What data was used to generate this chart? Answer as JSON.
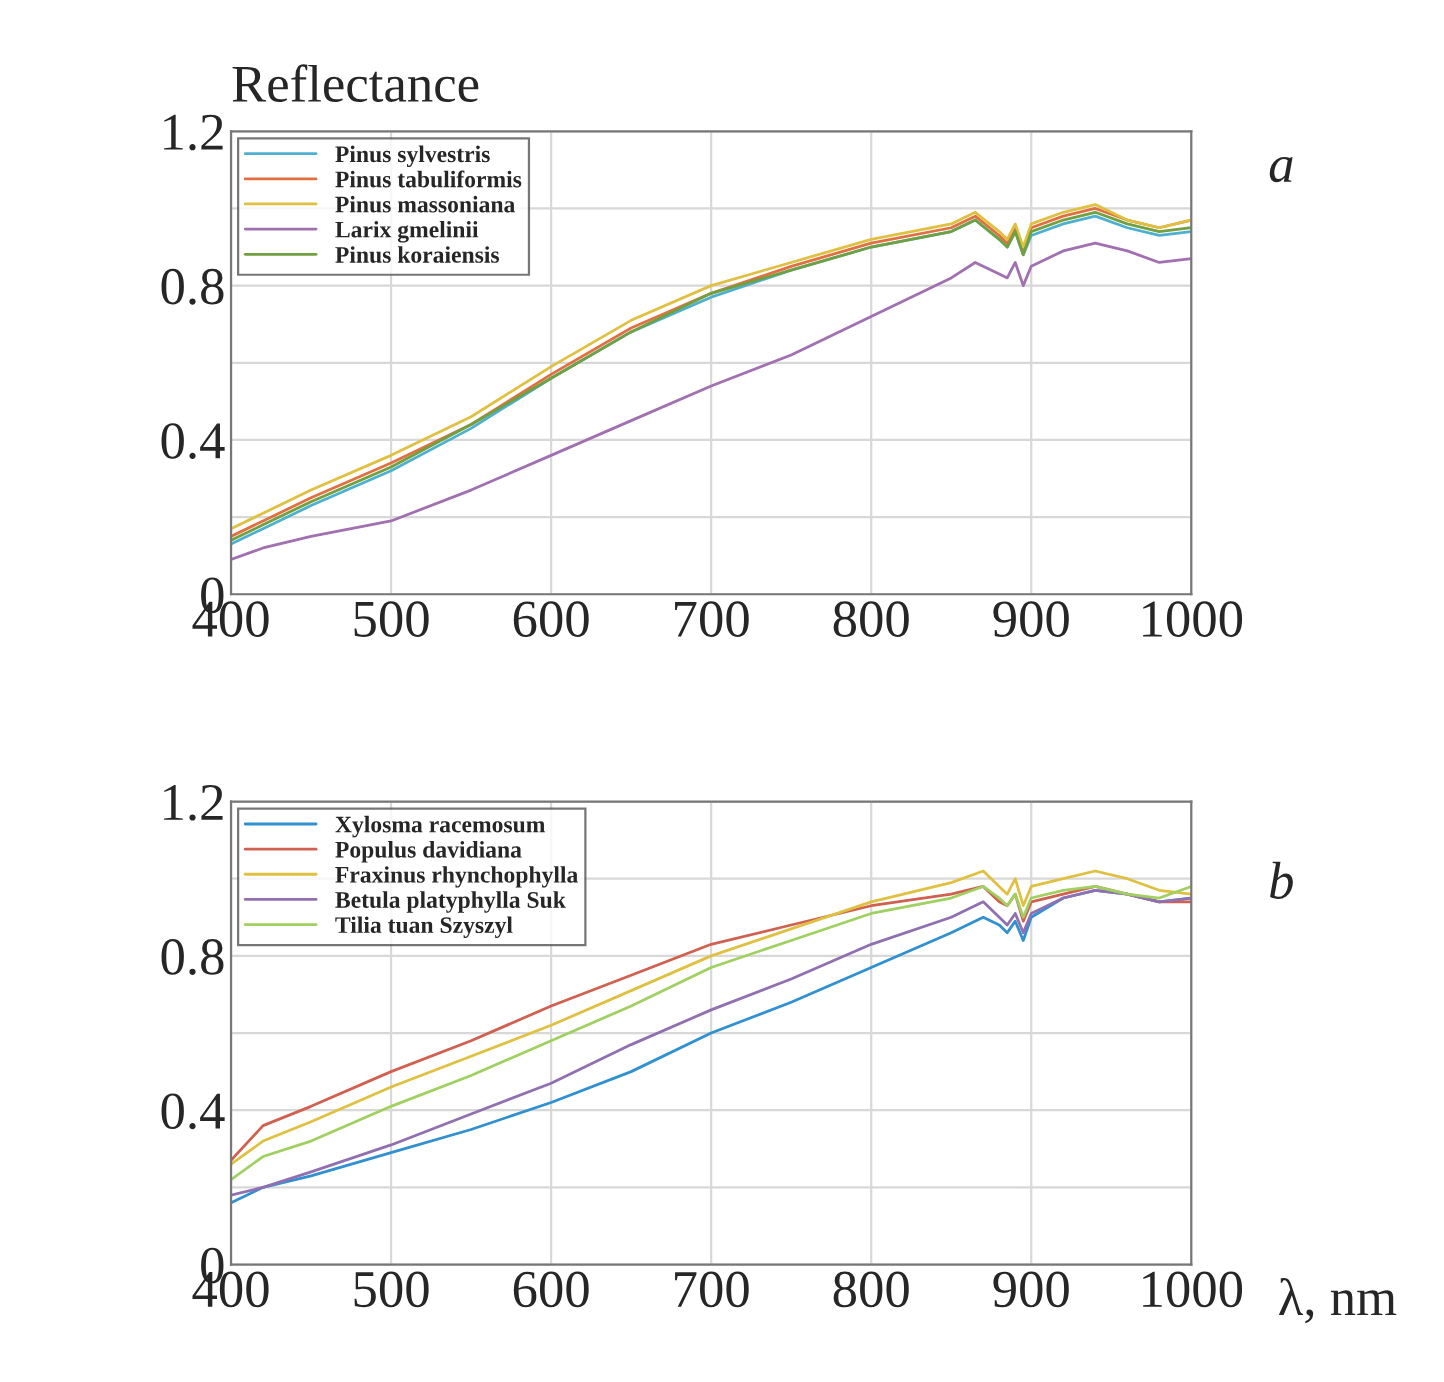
{
  "chart_data": [
    {
      "type": "line",
      "ylabel": "Reflectance",
      "annotations": [
        "a"
      ],
      "legend": "top left",
      "grid": true,
      "x": [
        400,
        420,
        450,
        500,
        550,
        600,
        650,
        700,
        750,
        800,
        850,
        865,
        880,
        885,
        890,
        895,
        900,
        920,
        940,
        960,
        980,
        1000
      ],
      "xlim": [
        400,
        1000
      ],
      "xticks": [
        400,
        500,
        600,
        700,
        800,
        900,
        1000
      ],
      "ylim": [
        0,
        1.2
      ],
      "yticks": [
        0,
        {
          "value": 0.2,
          "label": null
        },
        0.4,
        {
          "value": 0.6,
          "label": null
        },
        0.8,
        {
          "value": 1.0,
          "label": null
        },
        1.2
      ],
      "series": [
        {
          "name": "Pinus sylvestris",
          "color": "#4db0d0",
          "values": [
            0.13,
            0.17,
            0.23,
            0.32,
            0.43,
            0.56,
            0.68,
            0.77,
            0.84,
            0.9,
            0.94,
            0.97,
            0.92,
            0.9,
            0.94,
            0.88,
            0.93,
            0.96,
            0.98,
            0.95,
            0.93,
            0.94
          ]
        },
        {
          "name": "Pinus tabuliformis",
          "color": "#e07040",
          "values": [
            0.15,
            0.19,
            0.25,
            0.34,
            0.44,
            0.57,
            0.69,
            0.78,
            0.85,
            0.91,
            0.95,
            0.98,
            0.93,
            0.91,
            0.95,
            0.89,
            0.95,
            0.98,
            1.0,
            0.97,
            0.95,
            0.97
          ]
        },
        {
          "name": "Pinus massoniana",
          "color": "#e0c040",
          "values": [
            0.17,
            0.21,
            0.27,
            0.36,
            0.46,
            0.59,
            0.71,
            0.8,
            0.86,
            0.92,
            0.96,
            0.99,
            0.94,
            0.92,
            0.96,
            0.9,
            0.96,
            0.99,
            1.01,
            0.97,
            0.95,
            0.97
          ]
        },
        {
          "name": "Larix gmelinii",
          "color": "#a070b0",
          "values": [
            0.09,
            0.12,
            0.15,
            0.19,
            0.27,
            0.36,
            0.45,
            0.54,
            0.62,
            0.72,
            0.82,
            0.86,
            0.83,
            0.82,
            0.86,
            0.8,
            0.85,
            0.89,
            0.91,
            0.89,
            0.86,
            0.87
          ]
        },
        {
          "name": "Pinus koraiensis",
          "color": "#70a040",
          "values": [
            0.14,
            0.18,
            0.24,
            0.33,
            0.44,
            0.56,
            0.68,
            0.78,
            0.84,
            0.9,
            0.94,
            0.97,
            0.92,
            0.9,
            0.94,
            0.88,
            0.94,
            0.97,
            0.99,
            0.96,
            0.94,
            0.95
          ]
        }
      ]
    },
    {
      "type": "line",
      "xlabel": "λ, nm",
      "annotations": [
        "b"
      ],
      "legend": "top left",
      "grid": true,
      "x": [
        400,
        420,
        450,
        500,
        550,
        600,
        650,
        700,
        750,
        800,
        850,
        870,
        880,
        885,
        890,
        895,
        900,
        920,
        940,
        960,
        980,
        1000
      ],
      "xlim": [
        400,
        1000
      ],
      "xticks": [
        400,
        500,
        600,
        700,
        800,
        900,
        1000
      ],
      "ylim": [
        0,
        1.2
      ],
      "yticks": [
        0,
        {
          "value": 0.2,
          "label": null
        },
        0.4,
        {
          "value": 0.6,
          "label": null
        },
        0.8,
        {
          "value": 1.0,
          "label": null
        },
        1.2
      ],
      "series": [
        {
          "name": "Xylosma racemosum",
          "color": "#3090d0",
          "values": [
            0.16,
            0.2,
            0.23,
            0.29,
            0.35,
            0.42,
            0.5,
            0.6,
            0.68,
            0.77,
            0.86,
            0.9,
            0.88,
            0.86,
            0.89,
            0.84,
            0.9,
            0.95,
            0.97,
            0.96,
            0.94,
            0.95
          ]
        },
        {
          "name": "Populus davidiana",
          "color": "#d06050",
          "values": [
            0.27,
            0.36,
            0.41,
            0.5,
            0.58,
            0.67,
            0.75,
            0.83,
            0.88,
            0.93,
            0.96,
            0.98,
            0.94,
            0.93,
            0.96,
            0.89,
            0.94,
            0.96,
            0.98,
            0.96,
            0.94,
            0.94
          ]
        },
        {
          "name": "Fraxinus rhynchophylla",
          "color": "#e0c040",
          "values": [
            0.26,
            0.32,
            0.37,
            0.46,
            0.54,
            0.62,
            0.71,
            0.8,
            0.87,
            0.94,
            0.99,
            1.02,
            0.98,
            0.96,
            1.0,
            0.93,
            0.98,
            1.0,
            1.02,
            1.0,
            0.97,
            0.96
          ]
        },
        {
          "name": "Betula platyphylla Suk",
          "color": "#9070b0",
          "values": [
            0.18,
            0.2,
            0.24,
            0.31,
            0.39,
            0.47,
            0.57,
            0.66,
            0.74,
            0.83,
            0.9,
            0.94,
            0.9,
            0.88,
            0.91,
            0.86,
            0.91,
            0.95,
            0.97,
            0.96,
            0.94,
            0.95
          ]
        },
        {
          "name": "Tilia tuan Szyszyl",
          "color": "#a0d060",
          "values": [
            0.22,
            0.28,
            0.32,
            0.41,
            0.49,
            0.58,
            0.67,
            0.77,
            0.84,
            0.91,
            0.95,
            0.98,
            0.95,
            0.93,
            0.96,
            0.9,
            0.95,
            0.97,
            0.98,
            0.96,
            0.95,
            0.98
          ]
        }
      ]
    }
  ]
}
